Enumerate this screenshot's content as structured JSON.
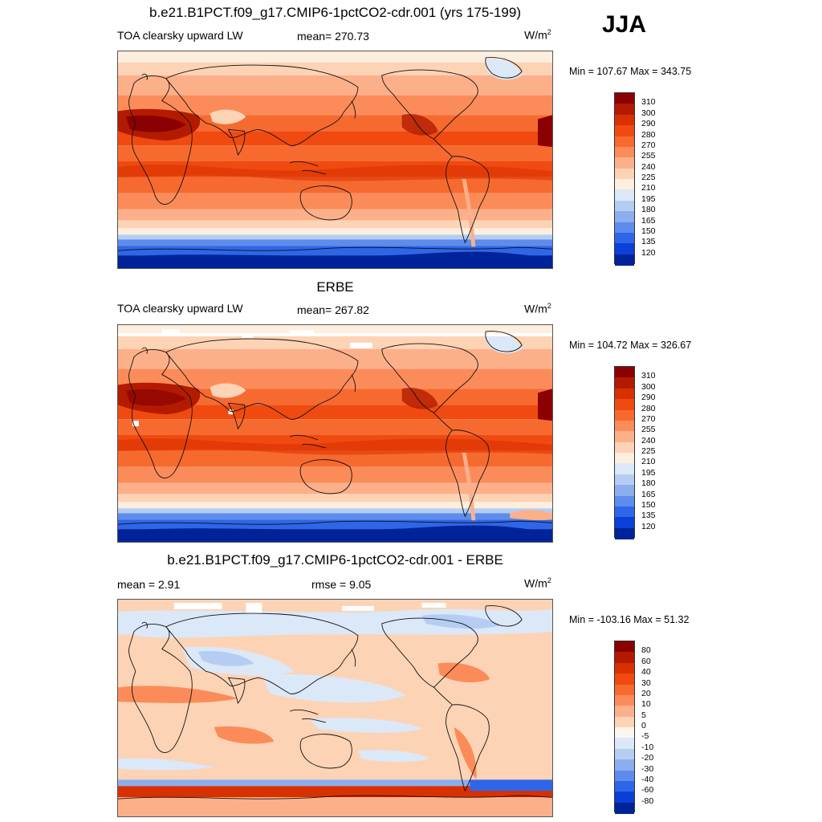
{
  "season": "JJA",
  "panels": [
    {
      "title": "b.e21.B1PCT.f09_g17.CMIP6-1pctCO2-cdr.001 (yrs 175-199)",
      "left_label": "TOA clearsky upward LW",
      "center_label": "mean= 270.73",
      "unit_base": "W/m",
      "unit_exp": "2",
      "minmax": "Min = 107.67 Max = 343.75",
      "map_type": "field",
      "colorbar": {
        "labels": [
          "310",
          "300",
          "290",
          "280",
          "270",
          "255",
          "240",
          "225",
          "210",
          "195",
          "180",
          "165",
          "150",
          "135",
          "120"
        ],
        "colors": [
          "#8b0000",
          "#b31b00",
          "#d93000",
          "#f04a10",
          "#f66a30",
          "#fb8c5a",
          "#fcb08a",
          "#fdd3b5",
          "#fdeedd",
          "#dbe8f8",
          "#b5cdf3",
          "#8aaeee",
          "#5d8cec",
          "#2f66e8",
          "#0a3fd8",
          "#00239a"
        ]
      }
    },
    {
      "title": "ERBE",
      "left_label": "TOA clearsky upward LW",
      "center_label": "mean= 267.82",
      "unit_base": "W/m",
      "unit_exp": "2",
      "minmax": "Min = 104.72 Max = 326.67",
      "map_type": "field",
      "colorbar": {
        "labels": [
          "310",
          "300",
          "290",
          "280",
          "270",
          "255",
          "240",
          "225",
          "210",
          "195",
          "180",
          "165",
          "150",
          "135",
          "120"
        ],
        "colors": [
          "#8b0000",
          "#b31b00",
          "#d93000",
          "#f04a10",
          "#f66a30",
          "#fb8c5a",
          "#fcb08a",
          "#fdd3b5",
          "#fdeedd",
          "#dbe8f8",
          "#b5cdf3",
          "#8aaeee",
          "#5d8cec",
          "#2f66e8",
          "#0a3fd8",
          "#00239a"
        ]
      }
    },
    {
      "title": "b.e21.B1PCT.f09_g17.CMIP6-1pctCO2-cdr.001 - ERBE",
      "left_label": "mean =   2.91",
      "center_label": "rmse =   9.05",
      "unit_base": "W/m",
      "unit_exp": "2",
      "minmax": "Min = -103.16 Max =  51.32",
      "map_type": "diff",
      "colorbar": {
        "labels": [
          "80",
          "60",
          "40",
          "30",
          "20",
          "10",
          "5",
          "0",
          "-5",
          "-10",
          "-20",
          "-30",
          "-40",
          "-60",
          "-80"
        ],
        "colors": [
          "#8b0000",
          "#b31b00",
          "#d93000",
          "#f04a10",
          "#f66a30",
          "#fb8c5a",
          "#fcb08a",
          "#fdd3b5",
          "#fdf6f0",
          "#dbe8f8",
          "#b5cdf3",
          "#8aaeee",
          "#5d8cec",
          "#2f66e8",
          "#0a3fd8",
          "#00239a"
        ]
      }
    }
  ]
}
